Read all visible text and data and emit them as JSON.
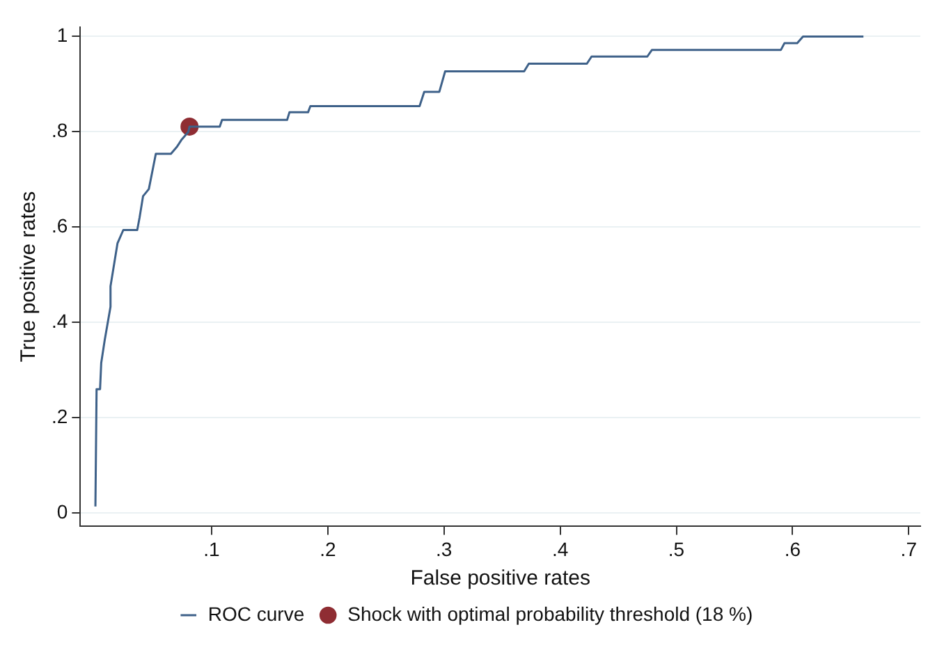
{
  "chart_data": {
    "type": "line",
    "xlabel": "False positive rates",
    "ylabel": "True positive rates",
    "xlim": [
      -0.013,
      0.71
    ],
    "ylim": [
      -0.028,
      1.02
    ],
    "xticks": [
      {
        "value": 0.1,
        "label": ".1"
      },
      {
        "value": 0.2,
        "label": ".2"
      },
      {
        "value": 0.3,
        "label": ".3"
      },
      {
        "value": 0.4,
        "label": ".4"
      },
      {
        "value": 0.5,
        "label": ".5"
      },
      {
        "value": 0.6,
        "label": ".6"
      },
      {
        "value": 0.7,
        "label": ".7"
      }
    ],
    "yticks": [
      0,
      {
        "value": 0.2,
        "label": ".2"
      },
      {
        "value": 0.4,
        "label": ".4"
      },
      {
        "value": 0.6,
        "label": ".6"
      },
      {
        "value": 0.8,
        "label": ".8"
      },
      1
    ],
    "grid": "y",
    "legend": "bottom",
    "marker": "none",
    "line_style": "solid",
    "series": [
      {
        "name": "ROC curve",
        "color": "#3e6189",
        "x": [
          0,
          0.001,
          0.004,
          0.005,
          0.008,
          0.013,
          0.013,
          0.019,
          0.024,
          0.036,
          0.038,
          0.041,
          0.046,
          0.052,
          0.065,
          0.07,
          0.074,
          0.08,
          0.081,
          0.107,
          0.109,
          0.165,
          0.167,
          0.183,
          0.185,
          0.279,
          0.283,
          0.296,
          0.301,
          0.369,
          0.373,
          0.423,
          0.427,
          0.475,
          0.479,
          0.59,
          0.593,
          0.604,
          0.609,
          0.661
        ],
        "values": [
          0.014,
          0.26,
          0.26,
          0.315,
          0.363,
          0.433,
          0.476,
          0.566,
          0.594,
          0.594,
          0.62,
          0.665,
          0.68,
          0.754,
          0.754,
          0.768,
          0.783,
          0.8,
          0.811,
          0.811,
          0.825,
          0.825,
          0.841,
          0.841,
          0.854,
          0.854,
          0.884,
          0.884,
          0.927,
          0.927,
          0.943,
          0.943,
          0.958,
          0.958,
          0.972,
          0.972,
          0.986,
          0.986,
          1,
          1
        ]
      },
      {
        "name": "Shock with optimal probability threshold (18 %)",
        "type": "scatter",
        "color": "#8f2d33",
        "marker": "circle",
        "x": [
          0.081
        ],
        "values": [
          0.811
        ]
      }
    ]
  }
}
